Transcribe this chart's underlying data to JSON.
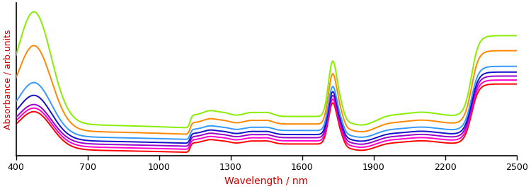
{
  "title": "",
  "xlabel": "Wavelength / nm",
  "ylabel": "Absorbance / arb.units",
  "xlabel_color": "#cc0000",
  "ylabel_color": "#cc0000",
  "xlim": [
    400,
    2500
  ],
  "colors": [
    "#ff0000",
    "#ff00cc",
    "#9900cc",
    "#1111cc",
    "#3399ff",
    "#ff8800",
    "#88ee00"
  ],
  "linewidth": 1.4,
  "bg_color": "#ffffff",
  "tick_color": "#000000"
}
